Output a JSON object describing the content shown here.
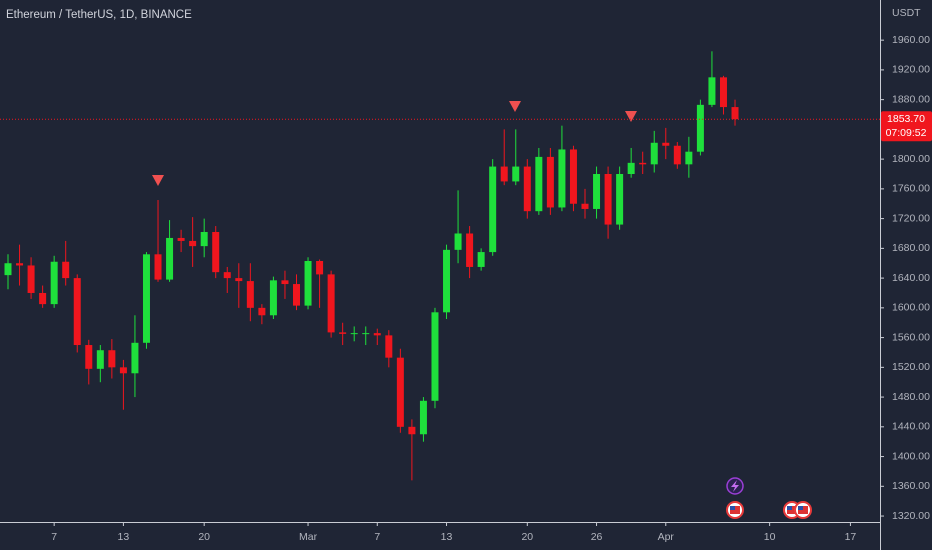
{
  "chart_data": {
    "type": "candlestick",
    "title": "Ethereum / TetherUS, 1D, BINANCE",
    "currency": "USDT",
    "categories": [
      null,
      null,
      null,
      null,
      "7",
      null,
      null,
      null,
      null,
      null,
      "13",
      null,
      null,
      null,
      null,
      null,
      null,
      "20",
      null,
      null,
      null,
      null,
      null,
      null,
      null,
      null,
      "Mar",
      null,
      null,
      null,
      null,
      null,
      "7",
      null,
      null,
      null,
      null,
      null,
      "13",
      null,
      null,
      null,
      null,
      null,
      null,
      "20",
      null,
      null,
      null,
      null,
      null,
      "26",
      null,
      null,
      null,
      null,
      null,
      "Apr",
      null,
      null,
      null,
      null,
      null,
      null,
      null,
      null,
      "10",
      null,
      null,
      null,
      null,
      null,
      null,
      "17",
      null,
      null
    ],
    "open": [
      1644,
      1660,
      1657,
      1620,
      1605,
      1662,
      1640,
      1550,
      1518,
      1543,
      1520,
      1512,
      1553,
      1672,
      1638,
      1694,
      1690,
      1683,
      1702,
      1648,
      1640,
      1636,
      1600,
      1590,
      1637,
      1632,
      1603,
      1663,
      1645,
      1567,
      1565,
      1566,
      1566,
      1563,
      1533,
      1440,
      1430,
      1475,
      1594,
      1678,
      1700,
      1655,
      1675,
      1790,
      1770,
      1790,
      1730,
      1803,
      1735,
      1813,
      1740,
      1733,
      1780,
      1712,
      1780,
      1795,
      1793,
      1822,
      1818,
      1793,
      1810,
      1873,
      1910,
      1870,
      null,
      null,
      null,
      null,
      null,
      null,
      null,
      null,
      null,
      null,
      null,
      null
    ],
    "high": [
      1672,
      1685,
      1668,
      1630,
      1670,
      1690,
      1645,
      1557,
      1550,
      1558,
      1530,
      1590,
      1675,
      1745,
      1718,
      1705,
      1722,
      1720,
      1710,
      1655,
      1660,
      1660,
      1605,
      1642,
      1650,
      1645,
      1668,
      1665,
      1650,
      1580,
      1575,
      1575,
      1572,
      1570,
      1545,
      1450,
      1480,
      1600,
      1685,
      1758,
      1710,
      1680,
      1800,
      1840,
      1840,
      1800,
      1815,
      1815,
      1845,
      1818,
      1760,
      1790,
      1790,
      1790,
      1815,
      1810,
      1838,
      1842,
      1823,
      1830,
      1880,
      1945,
      1912,
      1880,
      null,
      null,
      null,
      null,
      null,
      null,
      null,
      null,
      null,
      null,
      null,
      null
    ],
    "low": [
      1625,
      1630,
      1612,
      1600,
      1600,
      1630,
      1540,
      1497,
      1500,
      1505,
      1463,
      1480,
      1545,
      1635,
      1635,
      1675,
      1655,
      1668,
      1640,
      1620,
      1600,
      1582,
      1578,
      1585,
      1612,
      1597,
      1598,
      1600,
      1560,
      1550,
      1555,
      1550,
      1550,
      1520,
      1432,
      1368,
      1420,
      1465,
      1585,
      1660,
      1640,
      1650,
      1670,
      1765,
      1765,
      1720,
      1725,
      1725,
      1730,
      1730,
      1720,
      1720,
      1693,
      1705,
      1775,
      1780,
      1782,
      1800,
      1787,
      1775,
      1805,
      1870,
      1860,
      1845,
      null,
      null,
      null,
      null,
      null,
      null,
      null,
      null,
      null,
      null,
      null,
      null
    ],
    "close": [
      1660,
      1657,
      1620,
      1605,
      1662,
      1640,
      1550,
      1518,
      1543,
      1520,
      1512,
      1553,
      1672,
      1638,
      1694,
      1690,
      1683,
      1702,
      1648,
      1640,
      1636,
      1600,
      1590,
      1637,
      1632,
      1603,
      1663,
      1645,
      1567,
      1565,
      1566,
      1566,
      1563,
      1533,
      1440,
      1430,
      1475,
      1594,
      1678,
      1700,
      1655,
      1675,
      1790,
      1770,
      1790,
      1730,
      1803,
      1735,
      1813,
      1740,
      1733,
      1780,
      1712,
      1780,
      1795,
      1793,
      1822,
      1818,
      1793,
      1810,
      1873,
      1910,
      1870,
      1853.7,
      null,
      null,
      null,
      null,
      null,
      null,
      null,
      null,
      null,
      null,
      null,
      null
    ],
    "up_color": "#1fe03c",
    "down_color": "#f0161e",
    "last_price": {
      "value": 1853.7,
      "label": "1853.70"
    },
    "countdown": "07:09:52",
    "ylim": [
      1312,
      2014
    ],
    "yticks": [
      {
        "value": 1320,
        "label": "1320.00"
      },
      {
        "value": 1360,
        "label": "1360.00"
      },
      {
        "value": 1400,
        "label": "1400.00"
      },
      {
        "value": 1440,
        "label": "1440.00"
      },
      {
        "value": 1480,
        "label": "1480.00"
      },
      {
        "value": 1520,
        "label": "1520.00"
      },
      {
        "value": 1560,
        "label": "1560.00"
      },
      {
        "value": 1600,
        "label": "1600.00"
      },
      {
        "value": 1640,
        "label": "1640.00"
      },
      {
        "value": 1680,
        "label": "1680.00"
      },
      {
        "value": 1720,
        "label": "1720.00"
      },
      {
        "value": 1760,
        "label": "1760.00"
      },
      {
        "value": 1800,
        "label": "1800.00"
      },
      {
        "value": 1840,
        "label": "1840.00"
      },
      {
        "value": 1880,
        "label": "1880.00"
      },
      {
        "value": 1920,
        "label": "1920.00"
      },
      {
        "value": 1960,
        "label": "1960.00"
      }
    ],
    "grid": false
  }
}
